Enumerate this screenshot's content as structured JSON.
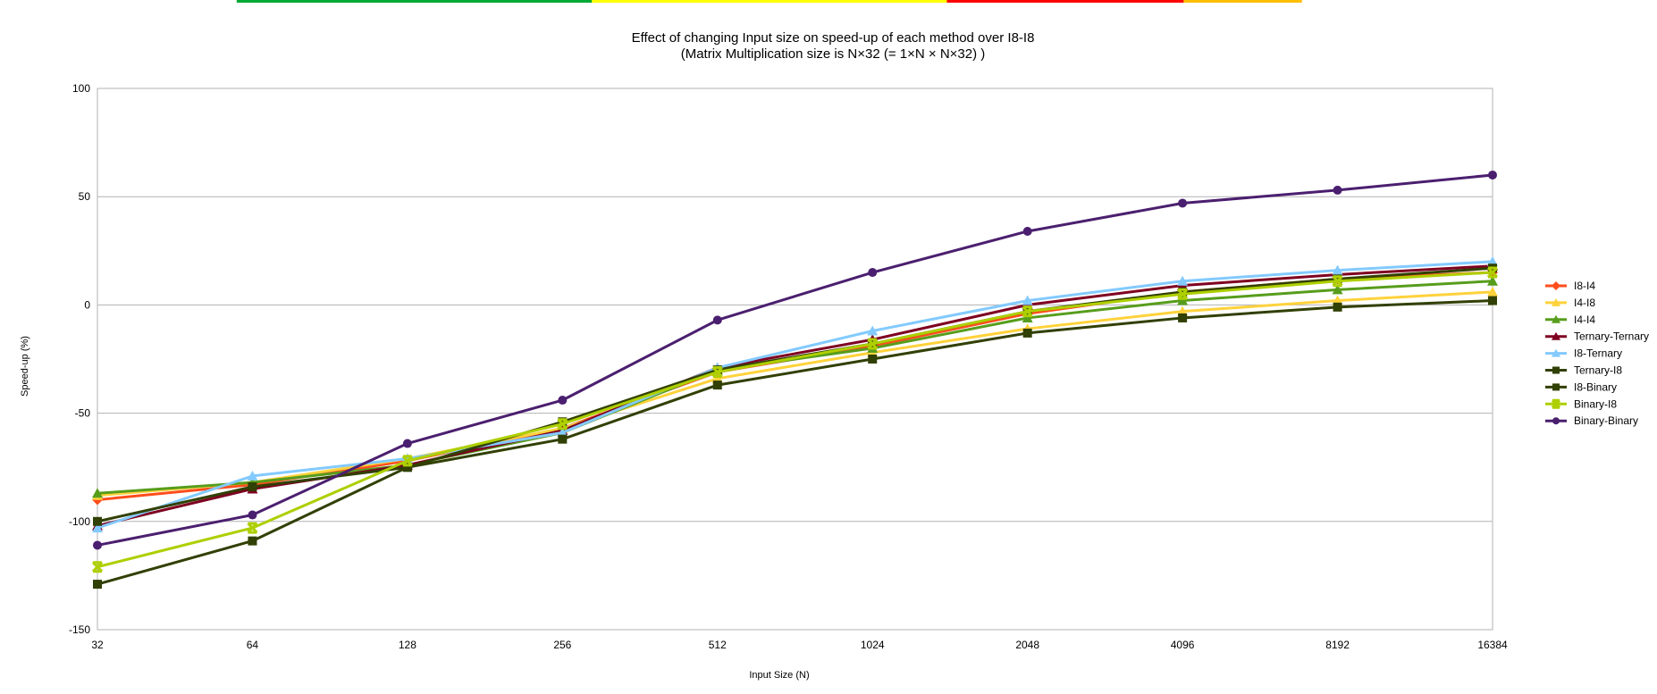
{
  "chart_data": {
    "type": "line",
    "title": "Effect of changing Input size on speed-up of each method over I8-I8",
    "subtitle": "(Matrix Multiplication size is N×32 (= 1×N × N×32) )",
    "xlabel": "Input Size (N)",
    "ylabel": "Speed-up (%)",
    "categories": [
      "32",
      "64",
      "128",
      "256",
      "512",
      "1024",
      "2048",
      "4096",
      "8192",
      "16384"
    ],
    "ylim": [
      -150,
      100
    ],
    "yticks": [
      100,
      50,
      0,
      -50,
      -100,
      -150
    ],
    "grid": true,
    "legend_position": "right",
    "series": [
      {
        "name": "I8-I4",
        "color": "#ff4d1c",
        "marker": "diamond",
        "values": [
          -90,
          -83,
          -72,
          -57,
          -31,
          -19,
          -4,
          6,
          12,
          15
        ]
      },
      {
        "name": "I4-I8",
        "color": "#ffd23b",
        "marker": "triangle",
        "values": [
          -88,
          -82,
          -71,
          -57,
          -34,
          -22,
          -11,
          -3,
          2,
          6
        ]
      },
      {
        "name": "I4-I4",
        "color": "#579d1c",
        "marker": "triangle",
        "values": [
          -87,
          -82,
          -74,
          -59,
          -30,
          -20,
          -6,
          2,
          7,
          11
        ]
      },
      {
        "name": "Ternary-Ternary",
        "color": "#7e0021",
        "marker": "triangle",
        "values": [
          -102,
          -85,
          -74,
          -58,
          -29,
          -16,
          0,
          9,
          14,
          18
        ]
      },
      {
        "name": "I8-Ternary",
        "color": "#83caff",
        "marker": "triangle",
        "values": [
          -103,
          -79,
          -71,
          -59,
          -29,
          -12,
          2,
          11,
          16,
          20
        ]
      },
      {
        "name": "Ternary-I8",
        "color": "#314004",
        "marker": "square",
        "values": [
          -100,
          -84,
          -75,
          -54,
          -30,
          -18,
          -3,
          6,
          12,
          17
        ]
      },
      {
        "name": "I8-Binary",
        "color": "#314004",
        "marker": "square",
        "values": [
          -129,
          -109,
          -75,
          -62,
          -37,
          -25,
          -13,
          -6,
          -1,
          2
        ]
      },
      {
        "name": "Binary-I8",
        "color": "#aecf00",
        "marker": "x",
        "values": [
          -121,
          -103,
          -72,
          -55,
          -31,
          -18,
          -3,
          5,
          11,
          15
        ]
      },
      {
        "name": "Binary-Binary",
        "color": "#4b1f6f",
        "marker": "circle",
        "values": [
          -111,
          -97,
          -64,
          -44,
          -7,
          15,
          34,
          47,
          53,
          60
        ]
      }
    ]
  },
  "top_strip_colors": [
    "#ffffff",
    "#ffffff",
    "#00a933",
    "#00a933",
    "#00a933",
    "#ffff00",
    "#ffff00",
    "#ffff00",
    "#ff0000",
    "#ff0000",
    "#ffbf00",
    "#ffffff",
    "#ffffff",
    "#ffffff"
  ]
}
